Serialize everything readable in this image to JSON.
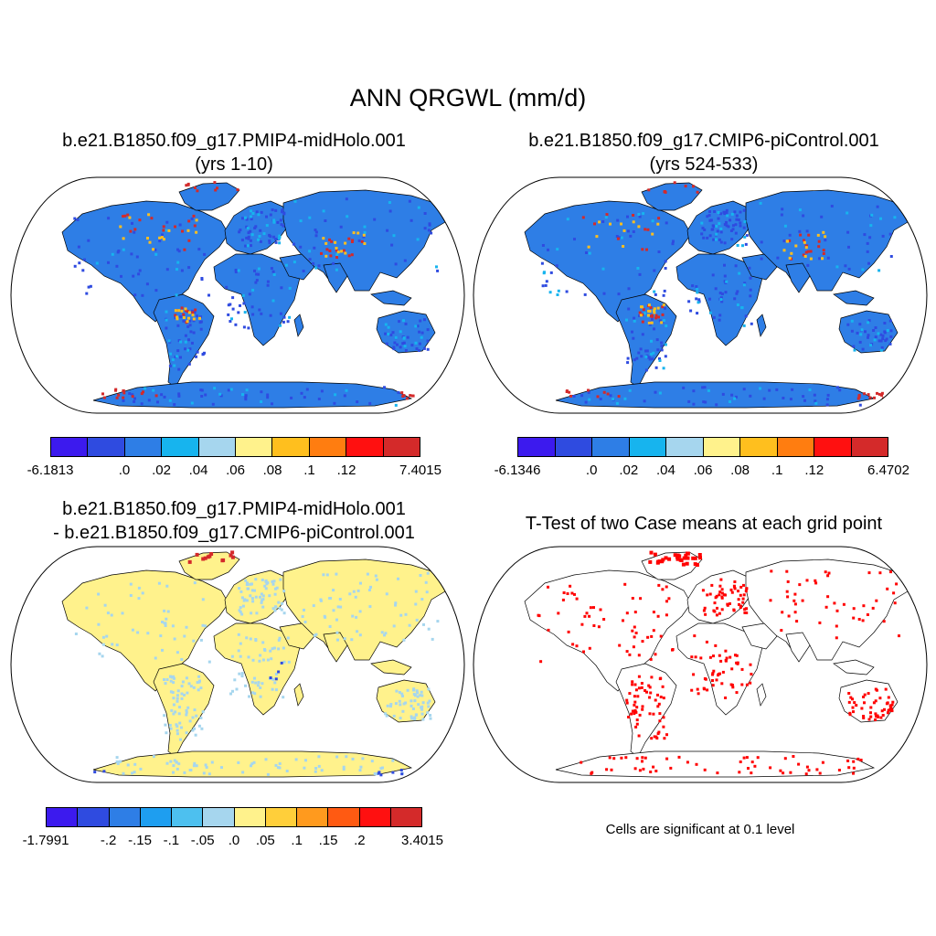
{
  "title": "ANN QRGWL (mm/d)",
  "panels": {
    "p1": {
      "line1": "b.e21.B1850.f09_g17.PMIP4-midHolo.001",
      "line2": "(yrs 1-10)"
    },
    "p2": {
      "line1": "b.e21.B1850.f09_g17.CMIP6-piControl.001",
      "line2": "(yrs 524-533)"
    },
    "p3": {
      "line1": "b.e21.B1850.f09_g17.PMIP4-midHolo.001",
      "line2": "- b.e21.B1850.f09_g17.CMIP6-piControl.001"
    },
    "p4": {
      "line1": "T-Test of two Case means at each grid point",
      "note": "Cells are significant at 0.1 level"
    }
  },
  "colorbars": {
    "cb1": {
      "colors": [
        "#3c1aee",
        "#2f4be0",
        "#2e7ee6",
        "#17b4ee",
        "#a6d6ee",
        "#fff28c",
        "#ffbf1e",
        "#ff7d10",
        "#ff1010",
        "#d42a2a"
      ],
      "labels": [
        "-6.1813",
        ".0",
        ".02",
        ".04",
        ".06",
        ".08",
        ".1",
        ".12",
        "7.4015"
      ]
    },
    "cb2": {
      "colors": [
        "#3c1aee",
        "#2f4be0",
        "#2e7ee6",
        "#17b4ee",
        "#a6d6ee",
        "#fff28c",
        "#ffbf1e",
        "#ff7d10",
        "#ff1010",
        "#d42a2a"
      ],
      "labels": [
        "-6.1346",
        ".0",
        ".02",
        ".04",
        ".06",
        ".08",
        ".1",
        ".12",
        "6.4702"
      ]
    },
    "cb3": {
      "colors": [
        "#3c1aee",
        "#2f4be0",
        "#2e7ee6",
        "#1e9ef0",
        "#4dc0ef",
        "#a6d6ee",
        "#fff28c",
        "#ffcf3a",
        "#ff9a1e",
        "#ff5a12",
        "#ff1010",
        "#d42a2a"
      ],
      "labels": [
        "-1.7991",
        "-.2",
        "-.15",
        "-.1",
        "-.05",
        ".0",
        ".05",
        ".1",
        ".15",
        ".2",
        "3.4015"
      ]
    }
  },
  "map_colors": {
    "land_abs": "#2e7ee6",
    "land_diff": "#fff28c",
    "diff_patch": "#a6d6ee",
    "sig": "#ff0000",
    "hot": "#d42a2a"
  }
}
